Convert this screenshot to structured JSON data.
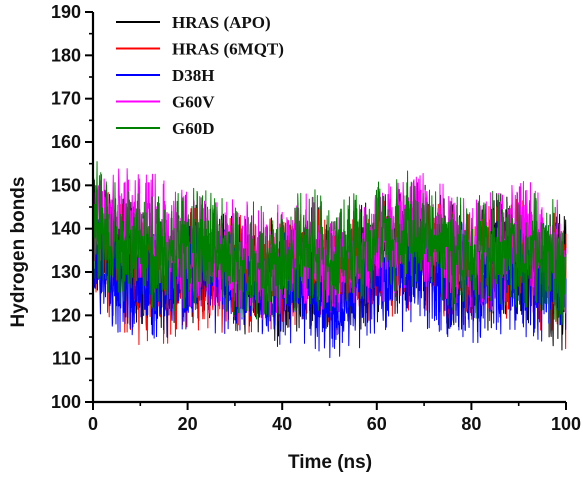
{
  "chart_data": {
    "type": "line",
    "title": "",
    "xlabel": "Time (ns)",
    "ylabel": "Hydrogen bonds",
    "xlim": [
      0,
      100
    ],
    "ylim": [
      100,
      190
    ],
    "xticks": [
      "0",
      "20",
      "40",
      "60",
      "80",
      "100"
    ],
    "yticks": [
      "100",
      "110",
      "120",
      "130",
      "140",
      "150",
      "160",
      "170",
      "180",
      "190"
    ],
    "grid": false,
    "legend_position": "top-left",
    "series": [
      {
        "name": "HRAS (APO)",
        "color": "#000000",
        "x": [
          0,
          5,
          10,
          15,
          20,
          25,
          30,
          35,
          40,
          45,
          50,
          55,
          60,
          65,
          70,
          75,
          80,
          85,
          90,
          95,
          100
        ],
        "y": [
          140,
          134,
          131,
          128,
          133,
          132,
          130,
          128,
          129,
          133,
          130,
          131,
          134,
          136,
          137,
          132,
          130,
          133,
          135,
          132,
          128
        ],
        "min": [
          125,
          119,
          115,
          114,
          118,
          117,
          116,
          114,
          113,
          117,
          115,
          116,
          118,
          120,
          121,
          117,
          115,
          117,
          119,
          116,
          107
        ],
        "max": [
          154,
          148,
          145,
          142,
          146,
          146,
          144,
          143,
          143,
          147,
          144,
          145,
          148,
          150,
          152,
          146,
          145,
          148,
          150,
          146,
          143
        ]
      },
      {
        "name": "HRAS (6MQT)",
        "color": "#ff0000",
        "x": [
          0,
          5,
          10,
          15,
          20,
          25,
          30,
          35,
          40,
          45,
          50,
          55,
          60,
          65,
          70,
          75,
          80,
          85,
          90,
          95,
          100
        ],
        "y": [
          138,
          133,
          129,
          127,
          132,
          131,
          130,
          129,
          131,
          132,
          129,
          130,
          133,
          134,
          135,
          131,
          129,
          132,
          133,
          131,
          129
        ],
        "min": [
          123,
          116,
          113,
          111,
          117,
          116,
          116,
          115,
          116,
          118,
          115,
          116,
          119,
          120,
          121,
          117,
          115,
          118,
          119,
          116,
          112
        ],
        "max": [
          151,
          147,
          143,
          141,
          145,
          145,
          144,
          143,
          144,
          146,
          143,
          144,
          147,
          148,
          149,
          145,
          143,
          146,
          147,
          145,
          143
        ]
      },
      {
        "name": "D38H",
        "color": "#0000ff",
        "x": [
          0,
          5,
          10,
          15,
          20,
          25,
          30,
          35,
          40,
          45,
          50,
          55,
          60,
          65,
          70,
          75,
          80,
          85,
          90,
          95,
          100
        ],
        "y": [
          133,
          128,
          127,
          126,
          130,
          128,
          127,
          126,
          125,
          127,
          124,
          125,
          128,
          130,
          131,
          129,
          127,
          128,
          129,
          128,
          129
        ],
        "min": [
          120,
          116,
          115,
          114,
          117,
          116,
          115,
          114,
          112,
          113,
          110,
          111,
          114,
          116,
          117,
          115,
          113,
          114,
          115,
          114,
          116
        ],
        "max": [
          147,
          142,
          140,
          139,
          143,
          141,
          140,
          139,
          139,
          141,
          138,
          139,
          142,
          144,
          145,
          143,
          141,
          142,
          143,
          142,
          142
        ]
      },
      {
        "name": "G60V",
        "color": "#ff00ff",
        "x": [
          0,
          5,
          10,
          15,
          20,
          25,
          30,
          35,
          40,
          45,
          50,
          55,
          60,
          65,
          70,
          75,
          80,
          85,
          90,
          95,
          100
        ],
        "y": [
          143,
          142,
          140,
          138,
          135,
          134,
          133,
          132,
          133,
          135,
          133,
          132,
          136,
          139,
          141,
          136,
          133,
          135,
          139,
          137,
          133
        ],
        "min": [
          130,
          129,
          127,
          124,
          121,
          120,
          119,
          118,
          119,
          121,
          119,
          118,
          122,
          125,
          127,
          122,
          119,
          121,
          125,
          123,
          120
        ],
        "max": [
          155,
          155,
          154,
          152,
          149,
          148,
          147,
          146,
          147,
          149,
          147,
          146,
          150,
          152,
          153,
          150,
          147,
          149,
          152,
          150,
          146
        ]
      },
      {
        "name": "G60D",
        "color": "#008000",
        "x": [
          0,
          5,
          10,
          15,
          20,
          25,
          30,
          35,
          40,
          45,
          50,
          55,
          60,
          65,
          70,
          75,
          80,
          85,
          90,
          95,
          100
        ],
        "y": [
          141,
          136,
          134,
          132,
          135,
          134,
          133,
          131,
          133,
          135,
          133,
          134,
          137,
          139,
          140,
          135,
          132,
          134,
          136,
          134,
          131
        ],
        "min": [
          128,
          122,
          121,
          119,
          122,
          121,
          120,
          118,
          120,
          122,
          120,
          121,
          124,
          126,
          127,
          122,
          118,
          120,
          122,
          120,
          117
        ],
        "max": [
          157,
          152,
          149,
          147,
          150,
          149,
          148,
          146,
          148,
          150,
          148,
          149,
          152,
          153,
          154,
          149,
          147,
          149,
          151,
          149,
          145
        ]
      }
    ]
  }
}
